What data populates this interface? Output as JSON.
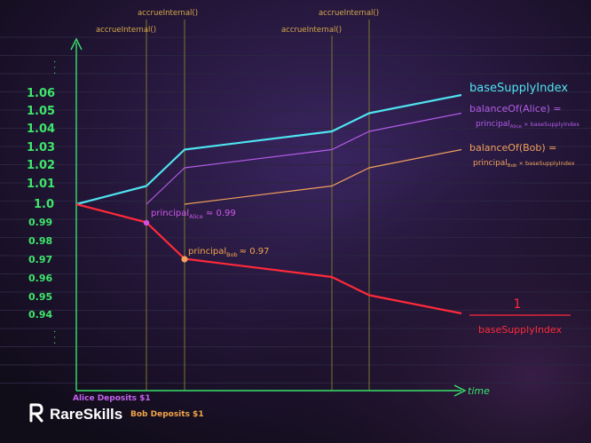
{
  "colors": {
    "background": "#150f22",
    "grid": "#2b2540",
    "axis": "#38e36b",
    "tick_text": "#3ee66a",
    "base_supply": "#4fe3f0",
    "alice": "#b45ce8",
    "bob": "#f2a15c",
    "inverse": "#ff2a3a",
    "annotation_text": "#d7a84a",
    "vline": "#7d7530",
    "alice_label": "#c463ee",
    "bob_label": "#f2a44a",
    "logo": "#ffffff"
  },
  "brand": {
    "name": "RareSkills"
  },
  "axis": {
    "x_label": "time",
    "top_dots": "· · ·",
    "bottom_dots": "· · ·",
    "ticks_upper": [
      "1.06",
      "1.05",
      "1.04",
      "1.03",
      "1.02",
      "1.01",
      "1.0"
    ],
    "ticks_lower": [
      "0.99",
      "0.98",
      "0.97",
      "0.96",
      "0.95",
      "0.94"
    ]
  },
  "events": {
    "accrue_labels": [
      "accrueInternal()",
      "accrueInternal()",
      "accrueInternal()",
      "accrueInternal()"
    ],
    "alice_deposit": "Alice Deposits $1",
    "bob_deposit": "Bob Deposits $1"
  },
  "chart_data": {
    "type": "line",
    "series": [
      {
        "name": "baseSupplyIndex",
        "points": [
          [
            0,
            1.0
          ],
          [
            1,
            1.01
          ],
          [
            2,
            1.03
          ],
          [
            3,
            1.04
          ],
          [
            4,
            1.05
          ],
          [
            5,
            1.06
          ]
        ]
      },
      {
        "name": "balanceOf(Alice)",
        "points": [
          [
            1,
            1.0
          ],
          [
            2,
            1.02
          ],
          [
            3,
            1.03
          ],
          [
            4,
            1.04
          ],
          [
            5,
            1.05
          ]
        ]
      },
      {
        "name": "balanceOf(Bob)",
        "points": [
          [
            2,
            1.0
          ],
          [
            3,
            1.01
          ],
          [
            4,
            1.02
          ],
          [
            5,
            1.03
          ]
        ]
      },
      {
        "name": "1 / baseSupplyIndex",
        "points": [
          [
            0,
            1.0
          ],
          [
            1,
            0.99
          ],
          [
            2,
            0.97
          ],
          [
            3,
            0.96
          ],
          [
            4,
            0.95
          ],
          [
            5,
            0.94
          ]
        ]
      }
    ]
  },
  "labels": {
    "base_supply_index": "baseSupplyIndex",
    "alice_balance_line1": "balanceOf(Alice) =",
    "alice_formula_principal": "principal",
    "alice_formula_sub": "Alice",
    "alice_formula_rest": " × baseSupplyIndex",
    "bob_balance_line1": "balanceOf(Bob) =",
    "bob_formula_principal": "principal",
    "bob_formula_sub": "Bob",
    "bob_formula_rest": " × baseSupplyIndex",
    "principal_alice_main": "principal",
    "principal_alice_sub": "Alice",
    "principal_alice_value": " ≈ 0.99",
    "principal_bob_main": "principal",
    "principal_bob_sub": "Bob",
    "principal_bob_value": "≈ 0.97",
    "fraction_numerator": "1",
    "fraction_denominator": "baseSupplyIndex"
  }
}
